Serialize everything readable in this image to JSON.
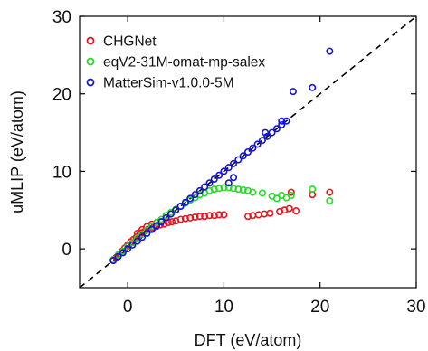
{
  "chart_data": {
    "type": "scatter",
    "title": "",
    "xlabel": "DFT (eV/atom)",
    "ylabel": "uMLIP (eV/atom)",
    "xlim": [
      -5,
      30
    ],
    "ylim": [
      -5,
      30
    ],
    "x_ticks": [
      0,
      10,
      20,
      30
    ],
    "y_ticks": [
      0,
      10,
      20,
      30
    ],
    "grid": false,
    "legend_position": "top-left",
    "reference_line": {
      "style": "dashed",
      "color": "#000000",
      "from": [
        -5,
        -5
      ],
      "to": [
        30,
        30
      ]
    },
    "series": [
      {
        "name": "CHGNet",
        "color": "#e8141e",
        "x": [
          -1.5,
          -1.2,
          -0.9,
          -0.6,
          -0.3,
          0.0,
          0.3,
          0.6,
          0.9,
          1.2,
          1.5,
          1.8,
          2.1,
          2.4,
          2.7,
          3.0,
          3.4,
          3.8,
          4.2,
          4.6,
          5.0,
          5.5,
          6.0,
          6.5,
          7.0,
          7.5,
          8.0,
          8.5,
          9.0,
          9.5,
          10.0,
          1.0,
          1.5,
          2.0,
          2.5,
          3.0,
          3.5,
          12.5,
          13.0,
          13.6,
          14.2,
          14.8,
          15.8,
          16.3,
          16.8,
          17.0,
          17.5,
          19.2,
          21.0
        ],
        "y": [
          -1.5,
          -1.1,
          -0.7,
          -0.3,
          0.1,
          0.5,
          0.9,
          1.2,
          1.5,
          1.8,
          2.1,
          2.3,
          2.5,
          2.6,
          2.8,
          2.9,
          3.1,
          3.2,
          3.4,
          3.5,
          3.6,
          3.8,
          3.9,
          4.0,
          4.1,
          4.2,
          4.2,
          4.3,
          4.3,
          4.4,
          4.4,
          2.0,
          2.5,
          2.9,
          3.2,
          3.4,
          3.5,
          4.2,
          4.3,
          4.4,
          4.5,
          4.6,
          4.8,
          5.0,
          5.2,
          7.3,
          4.9,
          7.0,
          7.3
        ]
      },
      {
        "name": "eqV2-31M-omat-mp-salex",
        "color": "#22dd22",
        "x": [
          -1.5,
          -1.0,
          -0.5,
          0.0,
          0.5,
          1.0,
          1.5,
          2.0,
          2.5,
          3.0,
          3.5,
          4.0,
          4.5,
          5.0,
          5.5,
          6.0,
          6.5,
          7.0,
          7.5,
          8.0,
          8.5,
          9.0,
          9.5,
          10.0,
          10.5,
          11.0,
          11.5,
          12.0,
          12.5,
          13.0,
          14.0,
          15.0,
          15.5,
          16.0,
          16.5,
          17.0,
          19.2,
          21.0
        ],
        "y": [
          -1.4,
          -0.8,
          -0.3,
          0.3,
          0.8,
          1.4,
          1.9,
          2.4,
          2.9,
          3.4,
          3.8,
          4.3,
          4.7,
          5.1,
          5.5,
          5.9,
          6.3,
          6.6,
          7.0,
          7.2,
          7.5,
          7.7,
          7.8,
          7.9,
          7.9,
          7.8,
          7.7,
          7.6,
          7.5,
          7.3,
          7.2,
          6.8,
          6.5,
          6.9,
          6.6,
          6.9,
          7.7,
          6.2
        ]
      },
      {
        "name": "MatterSim-v1.0.0-5M",
        "color": "#1414d8",
        "x": [
          -1.5,
          -1.0,
          -0.5,
          0.0,
          0.5,
          1.0,
          1.5,
          2.0,
          2.5,
          3.0,
          3.5,
          4.0,
          4.5,
          5.0,
          5.5,
          6.0,
          6.5,
          7.0,
          7.5,
          8.0,
          8.5,
          9.0,
          9.5,
          10.0,
          10.5,
          11.0,
          11.5,
          12.0,
          12.5,
          13.0,
          13.5,
          14.0,
          14.5,
          15.0,
          15.5,
          16.0,
          16.5,
          10.5,
          11.0,
          14.3,
          16.0,
          17.2,
          19.2,
          21.0
        ],
        "y": [
          -1.5,
          -1.0,
          -0.5,
          0.0,
          0.5,
          1.0,
          1.5,
          2.0,
          2.5,
          3.0,
          3.5,
          4.0,
          4.5,
          5.0,
          5.5,
          6.0,
          6.5,
          7.0,
          7.5,
          8.0,
          8.5,
          9.0,
          9.5,
          10.0,
          10.5,
          11.0,
          11.5,
          12.0,
          12.5,
          13.0,
          13.5,
          14.0,
          14.5,
          15.0,
          15.5,
          16.0,
          16.5,
          8.5,
          9.2,
          15.0,
          16.5,
          20.3,
          20.8,
          25.5
        ]
      }
    ]
  }
}
